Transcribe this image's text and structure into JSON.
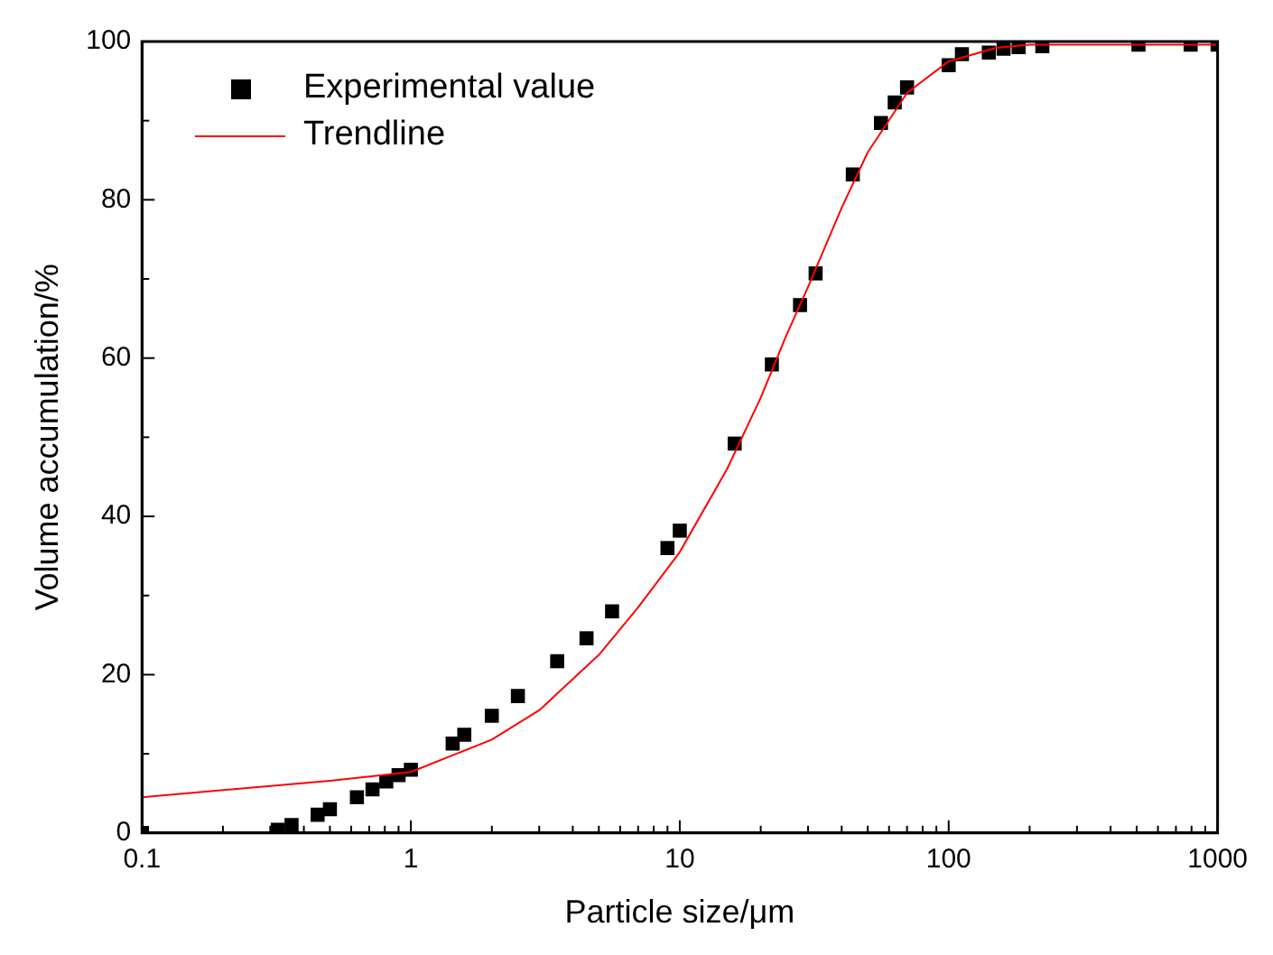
{
  "chart_data": {
    "type": "scatter",
    "xlabel": "Particle size/μm",
    "ylabel": "Volume accumulation/%",
    "log": "x",
    "xlim": [
      0.1,
      1000
    ],
    "ylim": [
      0,
      100
    ],
    "xticks": [
      0.1,
      {
        "value": 0.2,
        "label": null
      },
      {
        "value": 0.3,
        "label": null
      },
      {
        "value": 0.4,
        "label": null
      },
      {
        "value": 0.5,
        "label": null
      },
      {
        "value": 0.6,
        "label": null
      },
      {
        "value": 0.7,
        "label": null
      },
      {
        "value": 0.8,
        "label": null
      },
      {
        "value": 0.9,
        "label": null
      },
      1,
      {
        "value": 2,
        "label": null
      },
      {
        "value": 3,
        "label": null
      },
      {
        "value": 4,
        "label": null
      },
      {
        "value": 5,
        "label": null
      },
      {
        "value": 6,
        "label": null
      },
      {
        "value": 7,
        "label": null
      },
      {
        "value": 8,
        "label": null
      },
      {
        "value": 9,
        "label": null
      },
      10,
      {
        "value": 20,
        "label": null
      },
      {
        "value": 30,
        "label": null
      },
      {
        "value": 40,
        "label": null
      },
      {
        "value": 50,
        "label": null
      },
      {
        "value": 60,
        "label": null
      },
      {
        "value": 70,
        "label": null
      },
      {
        "value": 80,
        "label": null
      },
      {
        "value": 90,
        "label": null
      },
      100,
      {
        "value": 200,
        "label": null
      },
      {
        "value": 300,
        "label": null
      },
      {
        "value": 400,
        "label": null
      },
      {
        "value": 500,
        "label": null
      },
      {
        "value": 600,
        "label": null
      },
      {
        "value": 700,
        "label": null
      },
      {
        "value": 800,
        "label": null
      },
      {
        "value": 900,
        "label": null
      },
      1000
    ],
    "yticks": [
      0,
      {
        "value": 10,
        "label": null
      },
      20,
      {
        "value": 30,
        "label": null
      },
      40,
      {
        "value": 50,
        "label": null
      },
      60,
      {
        "value": 70,
        "label": null
      },
      80,
      {
        "value": 90,
        "label": null
      },
      100
    ],
    "grid": false,
    "legend": "top left",
    "series": [
      {
        "name": "Experimental value",
        "type": "scatter",
        "marker": "square",
        "color": "#000000",
        "x": [
          0.1,
          0.32,
          0.36,
          0.45,
          0.5,
          0.63,
          0.72,
          0.81,
          0.9,
          1.0,
          1.43,
          1.58,
          2.0,
          2.5,
          3.5,
          4.5,
          5.6,
          9,
          10,
          16,
          22,
          28,
          32,
          44,
          56,
          63,
          70,
          100,
          112,
          141,
          160,
          182,
          223,
          508,
          794,
          1000
        ],
        "values": [
          0,
          0.4,
          1.0,
          2.3,
          3.0,
          4.5,
          5.5,
          6.5,
          7.3,
          8.0,
          11.3,
          12.4,
          14.8,
          17.3,
          21.7,
          24.6,
          28,
          36,
          38.2,
          49.2,
          59.2,
          66.7,
          70.7,
          83.2,
          89.7,
          92.3,
          94.2,
          97,
          98.4,
          98.6,
          99.1,
          99.3,
          99.4,
          99.6,
          99.6,
          99.6
        ]
      },
      {
        "name": "Trendline",
        "type": "line",
        "marker": "none",
        "line_style": "solid",
        "color": "#ff0000",
        "x": [
          0.1,
          0.5,
          1,
          2,
          3,
          5,
          7,
          10,
          15,
          20,
          25,
          30,
          40,
          50,
          70,
          100,
          150,
          200,
          1000
        ],
        "values": [
          4.5,
          6.6,
          7.7,
          11.8,
          15.5,
          22.5,
          28.5,
          35.5,
          46,
          55,
          63,
          69,
          79,
          86,
          93.5,
          97.5,
          99.2,
          99.6,
          99.6
        ]
      }
    ]
  }
}
